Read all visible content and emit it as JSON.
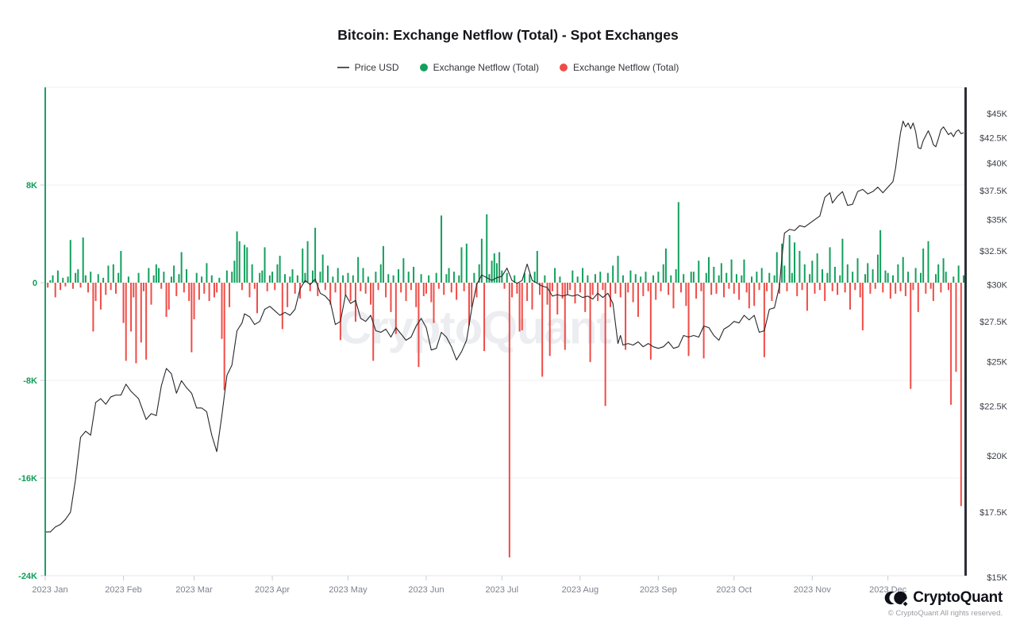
{
  "title": "Bitcoin: Exchange Netflow (Total) - Spot Exchanges",
  "legend": {
    "items": [
      {
        "label": "Price USD",
        "marker": "line",
        "color": "#55575e"
      },
      {
        "label": "Exchange Netflow (Total)",
        "marker": "dot",
        "color": "#13a05e"
      },
      {
        "label": "Exchange Netflow (Total)",
        "marker": "dot",
        "color": "#f04c47"
      }
    ]
  },
  "watermark": "CryptoQuant",
  "footer": {
    "brand": "CryptoQuant",
    "copyright": "© CryptoQuant All rights reserved."
  },
  "colors": {
    "positive_bar": "#13a05e",
    "negative_bar": "#f04c47",
    "price_line": "#26272b",
    "left_axis_line": "#1ba065",
    "right_axis_line": "#2c2e36",
    "left_tick_label": "#0f9d58",
    "right_tick_label": "#3c4049",
    "month_label": "#7d838c",
    "gridline": "#f1f1f5",
    "bottom_gridline": "#e7e7ec",
    "tick_mark": "#c9cdd3",
    "background": "#ffffff"
  },
  "chart_data": {
    "type": "bar+line",
    "title": "Bitcoin: Exchange Netflow (Total) - Spot Exchanges",
    "x_unit": "day of 2023",
    "x_axis": {
      "month_labels": [
        "2023 Jan",
        "2023 Feb",
        "2023 Mar",
        "2023 Apr",
        "2023 May",
        "2023 Jun",
        "2023 Jul",
        "2023 Aug",
        "2023 Sep",
        "2023 Oct",
        "2023 Nov",
        "2023 Dec"
      ],
      "month_start_days": [
        1,
        32,
        60,
        91,
        121,
        152,
        182,
        213,
        244,
        274,
        305,
        335
      ],
      "days_in_year": 365
    },
    "left_axis": {
      "name": "Exchange Netflow (Total), BTC",
      "scale": "linear",
      "range_k": [
        -24,
        24
      ],
      "labeled_ticks": [
        {
          "label": "8K",
          "value_k": 8
        },
        {
          "label": "0",
          "value_k": 0
        },
        {
          "label": "-8K",
          "value_k": -8
        },
        {
          "label": "-16K",
          "value_k": -16
        },
        {
          "label": "-24K",
          "value_k": -24
        }
      ],
      "gridline_values_k": [
        16,
        8,
        -8,
        -16,
        -24
      ]
    },
    "right_axis": {
      "name": "Price USD",
      "scale": "log",
      "range_k": [
        15,
        45
      ],
      "labeled_ticks": [
        {
          "label": "$45K",
          "value_k": 45
        },
        {
          "label": "$42.5K",
          "value_k": 42.5
        },
        {
          "label": "$40K",
          "value_k": 40
        },
        {
          "label": "$37.5K",
          "value_k": 37.5
        },
        {
          "label": "$35K",
          "value_k": 35
        },
        {
          "label": "$32.5K",
          "value_k": 32.5
        },
        {
          "label": "$30K",
          "value_k": 30
        },
        {
          "label": "$27.5K",
          "value_k": 27.5
        },
        {
          "label": "$25K",
          "value_k": 25
        },
        {
          "label": "$22.5K",
          "value_k": 22.5
        },
        {
          "label": "$20K",
          "value_k": 20
        },
        {
          "label": "$17.5K",
          "value_k": 17.5
        },
        {
          "label": "$15K",
          "value_k": 15
        }
      ]
    },
    "netflow_series": {
      "name": "Exchange Netflow (Total)",
      "unit": "K BTC per day (positive = inflow, green; negative = outflow, red)",
      "daily_values_k": [
        0.3,
        -0.4,
        0.2,
        0.6,
        -1.2,
        1.0,
        -0.6,
        0.4,
        -0.3,
        0.5,
        3.5,
        -0.5,
        0.8,
        1.1,
        -0.4,
        3.7,
        0.6,
        -0.8,
        0.9,
        -4.0,
        -1.5,
        0.7,
        -2.2,
        0.4,
        -1.0,
        1.4,
        -0.6,
        1.5,
        -0.9,
        0.8,
        2.6,
        -3.3,
        -6.4,
        0.5,
        -4.0,
        -1.2,
        -6.6,
        0.8,
        -4.9,
        -0.7,
        -6.3,
        1.2,
        -1.8,
        0.6,
        1.5,
        1.2,
        -0.5,
        0.9,
        -2.8,
        -2.2,
        0.5,
        1.4,
        -1.1,
        0.7,
        2.5,
        -0.8,
        1.1,
        -1.5,
        -5.7,
        -3.0,
        0.8,
        -1.4,
        0.5,
        -0.9,
        1.6,
        -1.5,
        0.6,
        -1.2,
        -0.8,
        0.4,
        -4.6,
        -8.8,
        1.0,
        -2.0,
        0.9,
        1.8,
        4.2,
        3.4,
        -0.6,
        3.1,
        2.9,
        -1.2,
        1.5,
        -0.5,
        -2.5,
        0.8,
        1.0,
        2.9,
        -0.7,
        0.6,
        0.9,
        -0.6,
        1.5,
        2.2,
        -3.8,
        0.7,
        -2.0,
        0.5,
        1.1,
        -0.9,
        0.6,
        -1.3,
        2.8,
        0.8,
        3.4,
        -0.7,
        1.0,
        4.5,
        -1.1,
        0.9,
        2.3,
        -0.6,
        1.4,
        -1.8,
        0.5,
        -0.8,
        1.2,
        -4.7,
        0.6,
        -1.0,
        0.8,
        -1.5,
        0.6,
        -3.2,
        2.1,
        -0.7,
        1.2,
        -0.9,
        0.5,
        -1.8,
        -6.4,
        0.9,
        -0.6,
        1.5,
        3.0,
        -1.2,
        0.7,
        -2.4,
        0.6,
        -4.2,
        1.1,
        -0.8,
        2.0,
        -1.5,
        0.9,
        -0.6,
        1.3,
        -2.0,
        -6.9,
        0.7,
        -1.1,
        -0.9,
        0.6,
        -1.6,
        -3.3,
        0.8,
        -0.5,
        5.5,
        -1.0,
        0.7,
        1.2,
        -0.8,
        0.9,
        -1.4,
        0.6,
        2.9,
        -0.7,
        3.2,
        -3.5,
        -2.0,
        0.8,
        -1.2,
        1.5,
        3.6,
        -5.6,
        5.6,
        0.7,
        1.8,
        2.4,
        1.6,
        2.5,
        1.0,
        -0.5,
        0.8,
        -22.5,
        -1.2,
        0.6,
        -0.9,
        -4.0,
        -3.9,
        0.8,
        -1.5,
        0.7,
        -2.2,
        0.9,
        2.6,
        -1.0,
        -7.7,
        0.6,
        -1.8,
        -6.0,
        -0.7,
        1.2,
        -2.6,
        0.5,
        -1.3,
        -5.5,
        -1.0,
        -0.6,
        1.0,
        -1.7,
        0.5,
        -0.8,
        1.2,
        -2.4,
        0.6,
        -6.5,
        -1.0,
        0.7,
        -1.5,
        0.9,
        -0.6,
        -10.1,
        0.8,
        -2.0,
        1.4,
        -0.9,
        2.2,
        -1.2,
        0.6,
        -5.5,
        -0.8,
        1.0,
        -1.6,
        0.7,
        -2.8,
        0.5,
        -1.1,
        0.9,
        -0.7,
        -6.3,
        0.6,
        -1.4,
        0.9,
        -0.7,
        1.5,
        2.8,
        -1.0,
        0.6,
        -2.1,
        1.1,
        6.6,
        -0.8,
        0.7,
        -1.9,
        -6.0,
        0.9,
        0.9,
        -1.3,
        1.8,
        -0.7,
        -6.2,
        0.8,
        2.1,
        -1.0,
        1.3,
        -0.9,
        0.6,
        1.6,
        -1.2,
        0.8,
        -0.5,
        1.9,
        -0.9,
        0.7,
        -1.4,
        0.6,
        1.9,
        -0.8,
        -2.1,
        0.5,
        -1.9,
        0.9,
        -0.6,
        1.2,
        -6.1,
        -0.7,
        0.8,
        -1.5,
        0.6,
        2.5,
        -0.9,
        3.2,
        1.4,
        -0.7,
        3.9,
        0.8,
        3.3,
        -1.1,
        2.6,
        -0.6,
        1.5,
        -2.3,
        0.7,
        1.8,
        -0.9,
        2.4,
        -0.6,
        1.1,
        -1.5,
        0.8,
        2.9,
        -0.7,
        1.3,
        -1.0,
        0.6,
        3.6,
        -0.8,
        1.5,
        -2.2,
        0.9,
        -0.6,
        2.0,
        -1.2,
        -3.9,
        0.7,
        1.6,
        -0.9,
        1.1,
        -0.5,
        2.3,
        4.3,
        -0.8,
        1.0,
        0.8,
        -1.3,
        0.6,
        -0.9,
        1.5,
        -0.7,
        2.1,
        -1.1,
        0.9,
        -8.7,
        -0.6,
        1.2,
        -2.4,
        0.8,
        2.8,
        -0.9,
        3.4,
        -0.5,
        -1.5,
        0.7,
        1.5,
        -0.8,
        2.0,
        0.9,
        -0.6,
        -10.0,
        0.5,
        -7.3,
        1.4,
        -18.3,
        0.6
      ]
    },
    "price_series": {
      "name": "Price USD",
      "unit": "thousand USD",
      "points_day_priceK": [
        [
          1,
          16.7
        ],
        [
          3,
          16.7
        ],
        [
          5,
          16.9
        ],
        [
          7,
          17.0
        ],
        [
          9,
          17.2
        ],
        [
          11,
          17.5
        ],
        [
          13,
          18.9
        ],
        [
          14,
          19.9
        ],
        [
          15,
          20.9
        ],
        [
          17,
          21.2
        ],
        [
          19,
          21.0
        ],
        [
          21,
          22.7
        ],
        [
          23,
          22.9
        ],
        [
          25,
          22.6
        ],
        [
          27,
          23.0
        ],
        [
          29,
          23.1
        ],
        [
          31,
          23.1
        ],
        [
          33,
          23.7
        ],
        [
          35,
          23.3
        ],
        [
          38,
          22.9
        ],
        [
          41,
          21.8
        ],
        [
          43,
          22.1
        ],
        [
          45,
          22.0
        ],
        [
          47,
          23.6
        ],
        [
          49,
          24.6
        ],
        [
          51,
          24.3
        ],
        [
          53,
          23.2
        ],
        [
          55,
          23.9
        ],
        [
          57,
          23.5
        ],
        [
          59,
          23.2
        ],
        [
          61,
          22.4
        ],
        [
          63,
          22.4
        ],
        [
          65,
          22.2
        ],
        [
          67,
          21.0
        ],
        [
          69,
          20.2
        ],
        [
          71,
          22.0
        ],
        [
          73,
          24.2
        ],
        [
          75,
          24.8
        ],
        [
          77,
          26.9
        ],
        [
          79,
          27.4
        ],
        [
          80,
          28.0
        ],
        [
          82,
          27.8
        ],
        [
          84,
          27.3
        ],
        [
          86,
          27.5
        ],
        [
          88,
          28.3
        ],
        [
          90,
          28.5
        ],
        [
          92,
          28.2
        ],
        [
          94,
          27.9
        ],
        [
          96,
          28.1
        ],
        [
          98,
          27.9
        ],
        [
          100,
          28.3
        ],
        [
          102,
          29.7
        ],
        [
          104,
          30.3
        ],
        [
          106,
          30.0
        ],
        [
          108,
          30.4
        ],
        [
          110,
          29.4
        ],
        [
          112,
          29.2
        ],
        [
          114,
          28.8
        ],
        [
          116,
          27.3
        ],
        [
          118,
          27.5
        ],
        [
          120,
          29.3
        ],
        [
          122,
          28.7
        ],
        [
          124,
          28.9
        ],
        [
          126,
          27.7
        ],
        [
          128,
          27.5
        ],
        [
          130,
          27.9
        ],
        [
          132,
          26.9
        ],
        [
          134,
          26.8
        ],
        [
          136,
          27.0
        ],
        [
          138,
          26.5
        ],
        [
          140,
          27.1
        ],
        [
          142,
          26.7
        ],
        [
          144,
          26.3
        ],
        [
          146,
          26.5
        ],
        [
          148,
          27.2
        ],
        [
          150,
          27.7
        ],
        [
          152,
          27.1
        ],
        [
          154,
          25.7
        ],
        [
          156,
          25.8
        ],
        [
          158,
          26.8
        ],
        [
          160,
          26.5
        ],
        [
          162,
          25.9
        ],
        [
          164,
          25.1
        ],
        [
          166,
          25.6
        ],
        [
          168,
          26.3
        ],
        [
          170,
          28.3
        ],
        [
          172,
          30.0
        ],
        [
          174,
          30.7
        ],
        [
          176,
          30.5
        ],
        [
          178,
          30.3
        ],
        [
          180,
          30.5
        ],
        [
          182,
          30.6
        ],
        [
          184,
          31.2
        ],
        [
          186,
          30.3
        ],
        [
          188,
          30.1
        ],
        [
          190,
          30.3
        ],
        [
          192,
          31.5
        ],
        [
          194,
          30.3
        ],
        [
          196,
          30.1
        ],
        [
          198,
          29.9
        ],
        [
          200,
          29.8
        ],
        [
          202,
          29.2
        ],
        [
          204,
          29.3
        ],
        [
          206,
          29.2
        ],
        [
          208,
          29.3
        ],
        [
          210,
          29.2
        ],
        [
          212,
          29.3
        ],
        [
          214,
          29.1
        ],
        [
          216,
          29.2
        ],
        [
          218,
          29.0
        ],
        [
          220,
          29.4
        ],
        [
          222,
          29.1
        ],
        [
          224,
          29.4
        ],
        [
          226,
          28.7
        ],
        [
          228,
          26.1
        ],
        [
          229,
          26.6
        ],
        [
          230,
          26.0
        ],
        [
          232,
          26.1
        ],
        [
          234,
          26.0
        ],
        [
          236,
          26.2
        ],
        [
          238,
          25.9
        ],
        [
          240,
          26.1
        ],
        [
          242,
          25.9
        ],
        [
          244,
          25.8
        ],
        [
          246,
          25.9
        ],
        [
          248,
          26.2
        ],
        [
          250,
          25.8
        ],
        [
          252,
          25.9
        ],
        [
          254,
          26.6
        ],
        [
          256,
          26.5
        ],
        [
          258,
          26.6
        ],
        [
          260,
          26.5
        ],
        [
          262,
          27.2
        ],
        [
          264,
          27.1
        ],
        [
          266,
          26.6
        ],
        [
          268,
          26.3
        ],
        [
          270,
          27.0
        ],
        [
          272,
          27.2
        ],
        [
          274,
          27.5
        ],
        [
          276,
          27.4
        ],
        [
          278,
          27.9
        ],
        [
          280,
          27.6
        ],
        [
          282,
          27.9
        ],
        [
          284,
          26.8
        ],
        [
          286,
          26.9
        ],
        [
          288,
          28.3
        ],
        [
          290,
          28.4
        ],
        [
          292,
          29.9
        ],
        [
          293,
          32.0
        ],
        [
          294,
          33.9
        ],
        [
          296,
          34.2
        ],
        [
          298,
          34.1
        ],
        [
          300,
          34.5
        ],
        [
          302,
          34.4
        ],
        [
          304,
          34.7
        ],
        [
          306,
          35.0
        ],
        [
          308,
          35.3
        ],
        [
          310,
          36.9
        ],
        [
          312,
          37.3
        ],
        [
          313,
          36.4
        ],
        [
          315,
          37.0
        ],
        [
          317,
          37.4
        ],
        [
          319,
          36.2
        ],
        [
          321,
          36.3
        ],
        [
          323,
          37.4
        ],
        [
          325,
          37.6
        ],
        [
          327,
          37.2
        ],
        [
          329,
          37.4
        ],
        [
          331,
          37.8
        ],
        [
          333,
          37.3
        ],
        [
          335,
          37.8
        ],
        [
          337,
          38.3
        ],
        [
          338,
          39.5
        ],
        [
          339,
          41.3
        ],
        [
          340,
          43.0
        ],
        [
          341,
          44.2
        ],
        [
          342,
          43.6
        ],
        [
          343,
          44.0
        ],
        [
          344,
          43.4
        ],
        [
          345,
          44.0
        ],
        [
          346,
          43.1
        ],
        [
          347,
          41.5
        ],
        [
          348,
          41.4
        ],
        [
          349,
          42.2
        ],
        [
          350,
          42.7
        ],
        [
          351,
          43.2
        ],
        [
          352,
          42.6
        ],
        [
          353,
          41.8
        ],
        [
          354,
          41.6
        ],
        [
          355,
          42.4
        ],
        [
          356,
          43.3
        ],
        [
          357,
          43.6
        ],
        [
          358,
          43.2
        ],
        [
          359,
          42.8
        ],
        [
          360,
          43.0
        ],
        [
          361,
          42.6
        ],
        [
          362,
          43.1
        ],
        [
          363,
          43.3
        ],
        [
          364,
          42.9
        ],
        [
          365,
          43.0
        ]
      ]
    }
  }
}
